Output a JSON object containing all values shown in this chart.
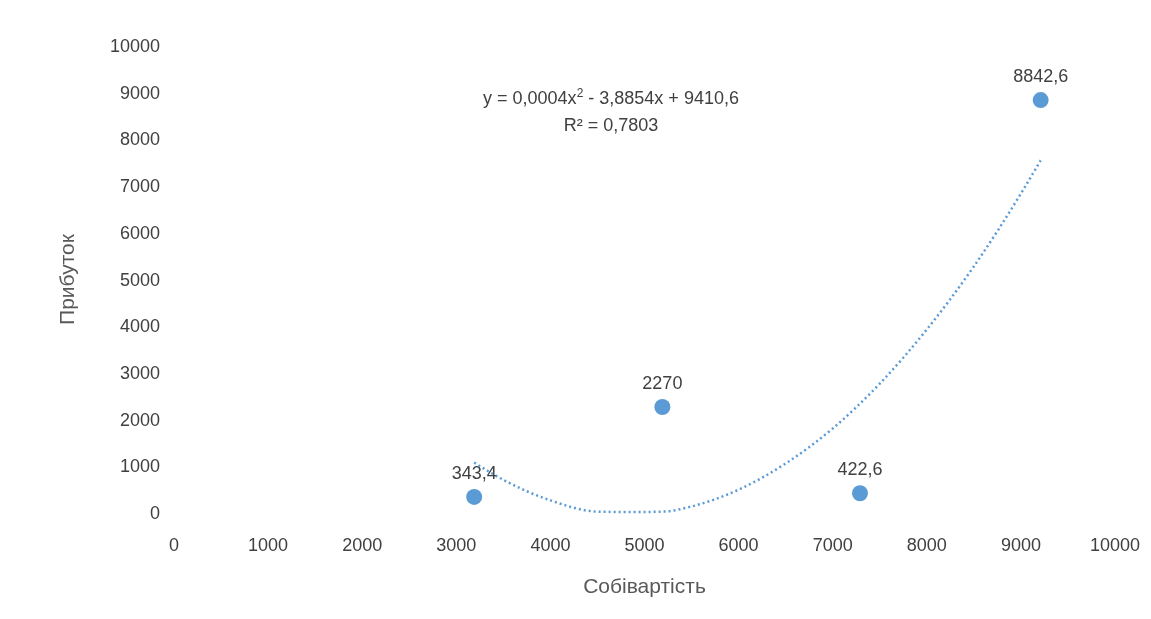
{
  "chart_data": {
    "type": "scatter",
    "xlabel": "Собівартість",
    "ylabel": "Прибуток",
    "xlim": [
      0,
      10000
    ],
    "xticks": [
      0,
      1000,
      2000,
      3000,
      4000,
      5000,
      6000,
      7000,
      8000,
      9000,
      10000
    ],
    "ylim": [
      0,
      10000
    ],
    "yticks": [
      0,
      1000,
      2000,
      3000,
      4000,
      5000,
      6000,
      7000,
      8000,
      9000,
      10000
    ],
    "grid": false,
    "marker": "circle",
    "series": [
      {
        "color": "#5b9bd5",
        "x": [
          3190,
          5190,
          7290,
          9210
        ],
        "values": [
          343.4,
          2270,
          422.6,
          8842.6
        ],
        "value_labels": [
          "343,4",
          "2270",
          "422,6",
          "8842,6"
        ]
      },
      {
        "type": "line",
        "color": "#5b9bd5",
        "line_style": "dotted",
        "marker": "none",
        "x": [
          3190,
          3500,
          4000,
          4500,
          4860,
          5200,
          5500,
          6000,
          6500,
          7000,
          7500,
          8000,
          8500,
          9000,
          9210
        ],
        "values": [
          1080,
          710,
          270,
          30,
          20,
          30,
          140,
          500,
          1060,
          1810,
          2770,
          3930,
          5280,
          6840,
          7550
        ]
      }
    ],
    "annotations": [
      "y = 0,0004x$^{2}$ - 3,8854x + 9410,6",
      "R² = 0,7803"
    ]
  }
}
